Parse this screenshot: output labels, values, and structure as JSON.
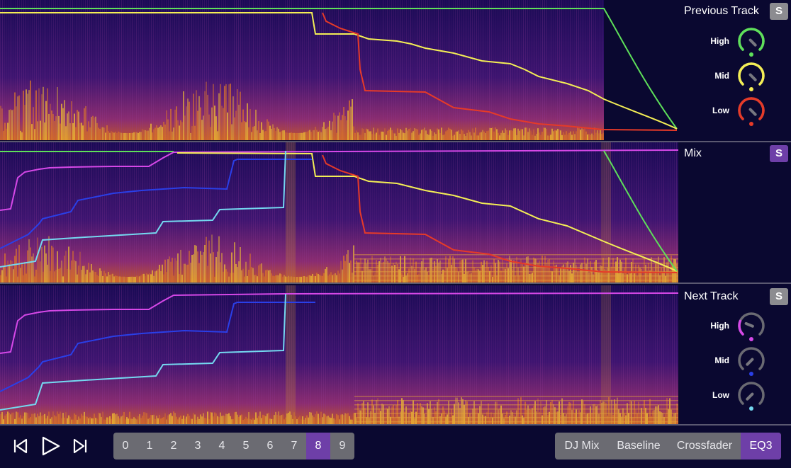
{
  "panels": {
    "previous": {
      "title": "Previous Track",
      "solo_label": "S",
      "solo_active": false
    },
    "mix": {
      "title": "Mix",
      "solo_label": "S",
      "solo_active": true
    },
    "next": {
      "title": "Next Track",
      "solo_label": "S",
      "solo_active": false
    }
  },
  "knobs": {
    "previous": [
      {
        "label": "High",
        "color": "#5ee05a",
        "level": 1.0
      },
      {
        "label": "Mid",
        "color": "#f4ee55",
        "level": 1.0
      },
      {
        "label": "Low",
        "color": "#e63a28",
        "level": 1.0
      }
    ],
    "next": [
      {
        "label": "High",
        "color": "#d648e8",
        "level": 0.25
      },
      {
        "label": "Mid",
        "color": "#2a3fe8",
        "level": 0.0
      },
      {
        "label": "Low",
        "color": "#74d8f0",
        "level": 0.0
      }
    ]
  },
  "colors": {
    "prev_high": "#5ee05a",
    "prev_mid": "#f4ee55",
    "prev_low": "#e63a28",
    "next_high": "#d648e8",
    "next_mid": "#2a3fe8",
    "next_low": "#74d8f0",
    "accent": "#6e3fa8",
    "button_gray": "#6b6b72"
  },
  "transport": {
    "prev_icon": "skip-back-icon",
    "play_icon": "play-icon",
    "next_icon": "skip-forward-icon"
  },
  "numbers": {
    "items": [
      "0",
      "1",
      "2",
      "3",
      "4",
      "5",
      "6",
      "7",
      "8",
      "9"
    ],
    "selected": "8"
  },
  "modes": {
    "items": [
      "DJ Mix",
      "Baseline",
      "Crossfader",
      "EQ3"
    ],
    "selected": "EQ3"
  }
}
